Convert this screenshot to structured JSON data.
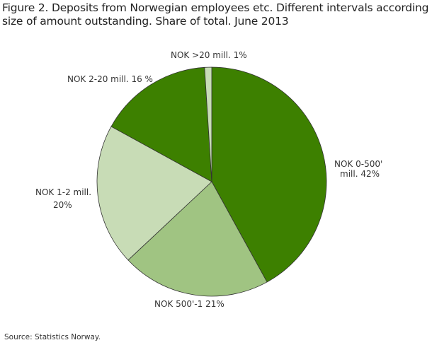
{
  "chart_data": {
    "type": "pie",
    "title_lines": [
      "Figure 2. Deposits from Norwegian employees etc. Different intervals according to",
      "size of amount outstanding. Share of total. June 2013"
    ],
    "source": "Source: Statistics Norway.",
    "slices": [
      {
        "category": "NOK 0-500' mill.",
        "value": 42,
        "label_lines": [
          "NOK  0-500'",
          "mill. 42%"
        ],
        "color": "#3d8000"
      },
      {
        "category": "NOK 500'-1",
        "value": 21,
        "label_lines": [
          "NOK 500'-1 21%"
        ],
        "color": "#a0c482"
      },
      {
        "category": "NOK 1-2 mill.",
        "value": 20,
        "label_lines": [
          "NOK 1-2 mill.",
          "20%"
        ],
        "color": "#c8dcb6"
      },
      {
        "category": "NOK 2-20 mill.",
        "value": 16,
        "label_lines": [
          "NOK  2-20 mill. 16 %"
        ],
        "color": "#3d8000"
      },
      {
        "category": "NOK >20 mill.",
        "value": 1,
        "label_lines": [
          "NOK  >20 mill. 1%"
        ],
        "color": "#c8dcb6"
      }
    ]
  }
}
